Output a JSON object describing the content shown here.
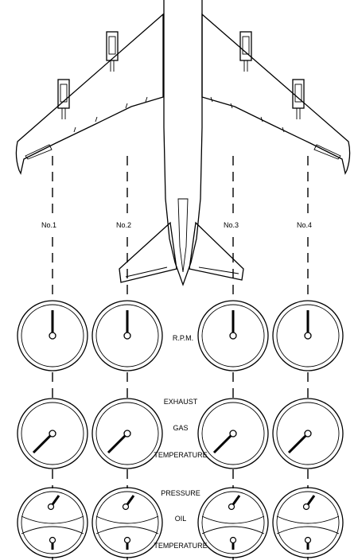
{
  "engines": [
    {
      "label": "No.1"
    },
    {
      "label": "No.2"
    },
    {
      "label": "No.3"
    },
    {
      "label": "No.4"
    }
  ],
  "gauge_rows": [
    {
      "label_lines": [
        "R.P.M."
      ]
    },
    {
      "label_lines": [
        "EXHAUST",
        "GAS",
        "TEMPERATURE"
      ]
    },
    {
      "label_lines": [
        "PRESSURE",
        "OIL",
        "TEMPERATURE"
      ]
    }
  ],
  "colors": {
    "ink": "#000000",
    "paper": "#ffffff"
  }
}
